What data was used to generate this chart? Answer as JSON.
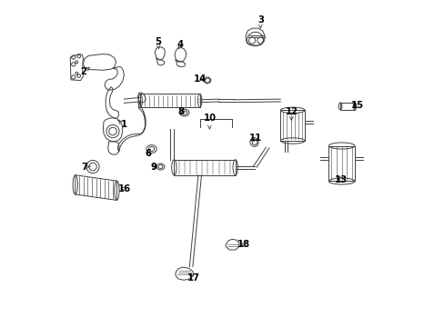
{
  "bg_color": "#ffffff",
  "line_color": "#404040",
  "fig_width": 4.89,
  "fig_height": 3.6,
  "dpi": 100,
  "labels": {
    "1": [
      0.195,
      0.62,
      0.175,
      0.635
    ],
    "2": [
      0.068,
      0.785,
      0.09,
      0.8
    ],
    "3": [
      0.618,
      0.945,
      0.618,
      0.918
    ],
    "4": [
      0.37,
      0.87,
      0.358,
      0.85
    ],
    "5": [
      0.3,
      0.878,
      0.303,
      0.855
    ],
    "6": [
      0.27,
      0.53,
      0.278,
      0.548
    ],
    "7": [
      0.072,
      0.49,
      0.09,
      0.49
    ],
    "8": [
      0.37,
      0.66,
      0.385,
      0.66
    ],
    "9": [
      0.286,
      0.49,
      0.3,
      0.49
    ],
    "10": [
      0.46,
      0.64,
      0.46,
      0.605
    ],
    "11": [
      0.602,
      0.578,
      0.592,
      0.56
    ],
    "12": [
      0.714,
      0.66,
      0.714,
      0.632
    ],
    "13": [
      0.868,
      0.45,
      0.858,
      0.468
    ],
    "14": [
      0.432,
      0.762,
      0.452,
      0.758
    ],
    "15": [
      0.918,
      0.68,
      0.895,
      0.68
    ],
    "16": [
      0.196,
      0.422,
      0.175,
      0.425
    ],
    "17": [
      0.412,
      0.145,
      0.39,
      0.16
    ],
    "18": [
      0.566,
      0.248,
      0.548,
      0.255
    ]
  }
}
